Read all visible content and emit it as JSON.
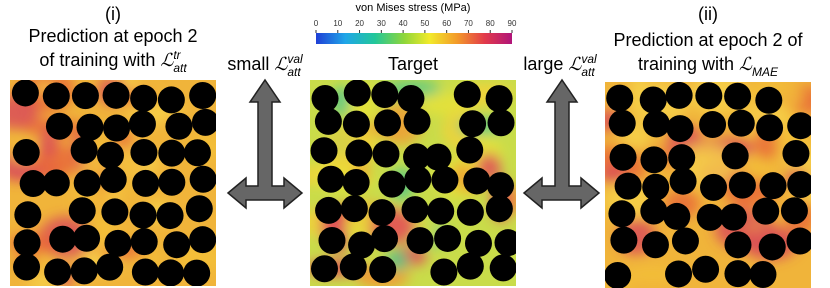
{
  "colorbar": {
    "title": "von Mises stress (MPa)",
    "lim": [
      0,
      90
    ],
    "ticks": [
      0,
      10,
      20,
      30,
      40,
      50,
      60,
      70,
      80,
      90
    ]
  },
  "panels": [
    {
      "label": "(i)",
      "caption": [
        {
          "text": "Prediction at epoch 2"
        },
        {
          "text": "of training with",
          "math": {
            "symbol": "ℒ",
            "sup": "tr",
            "sub": "att"
          }
        }
      ]
    },
    {
      "caption": [
        {
          "text": "Target"
        }
      ]
    },
    {
      "label": "(ii)",
      "caption": [
        {
          "text": "Prediction at epoch 2 of"
        },
        {
          "text": "training with",
          "math": {
            "symbol": "ℒ",
            "sub": "MAE"
          }
        }
      ]
    }
  ],
  "arrows": [
    {
      "text": "small",
      "math": {
        "symbol": "ℒ",
        "sup": "val",
        "sub": "att"
      }
    },
    {
      "text": "large",
      "math": {
        "symbol": "ℒ",
        "sup": "val",
        "sub": "att"
      }
    }
  ]
}
